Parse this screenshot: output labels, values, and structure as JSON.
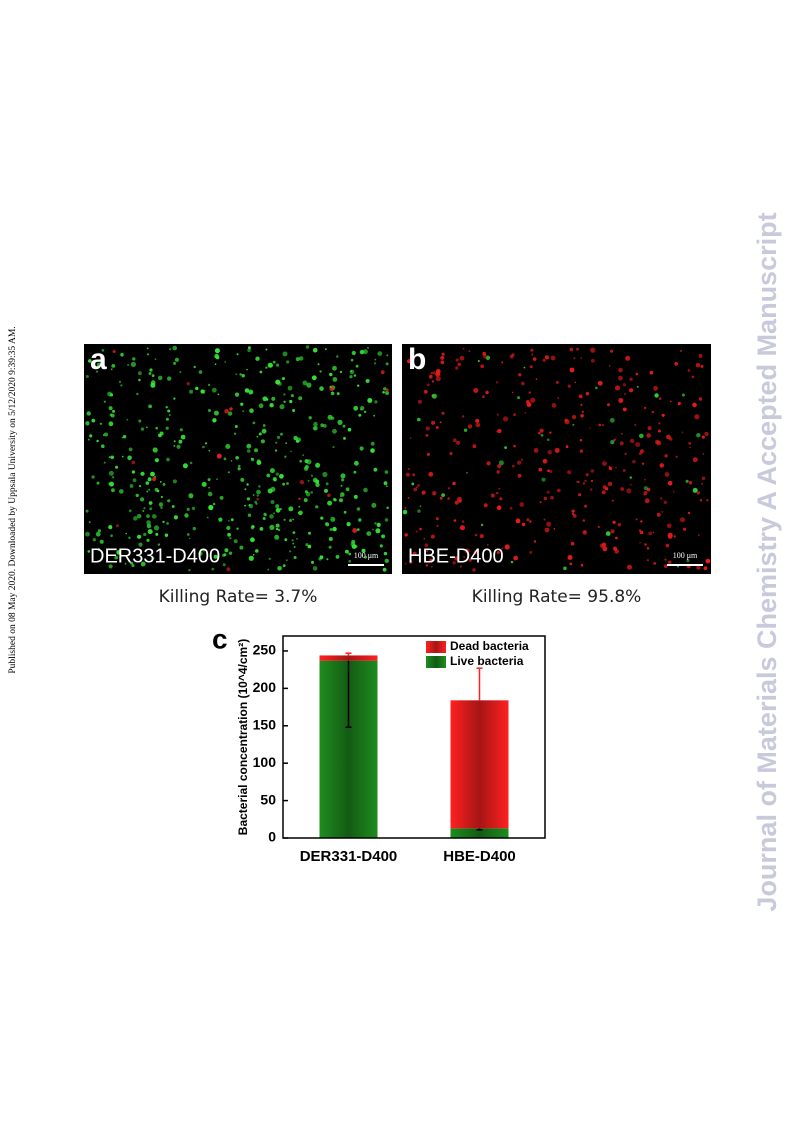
{
  "side_note": "Published on 08 May 2020. Downloaded by Uppsala University on 5/12/2020 9:39:35 AM.",
  "watermark": "Journal of Materials Chemistry A Accepted Manuscript",
  "figure": {
    "panels": [
      {
        "label": "a",
        "caption": "DER331-D400",
        "scale_bar": "100 μm",
        "killing_rate": "Killing Rate= 3.7%"
      },
      {
        "label": "b",
        "caption": "HBE-D400",
        "scale_bar": "100 μm",
        "killing_rate": "Killing Rate= 95.8%"
      }
    ]
  },
  "chart_data": {
    "type": "stacked_bar",
    "panel_label": "c",
    "categories": [
      "DER331-D400",
      "HBE-D400"
    ],
    "series": [
      {
        "name": "Live bacteria",
        "color": "#1e8c1e",
        "values": [
          237,
          13
        ],
        "errors": [
          89,
          2
        ]
      },
      {
        "name": "Dead bacteria",
        "color": "#ff2020",
        "values": [
          7,
          171
        ],
        "errors": [
          3,
          43
        ]
      }
    ],
    "ylabel": "Bacterial concentration (10^4/cm²)",
    "ylim": [
      0,
      270
    ],
    "yticks": [
      0,
      50,
      100,
      150,
      200,
      250
    ],
    "legend": "upper right"
  }
}
